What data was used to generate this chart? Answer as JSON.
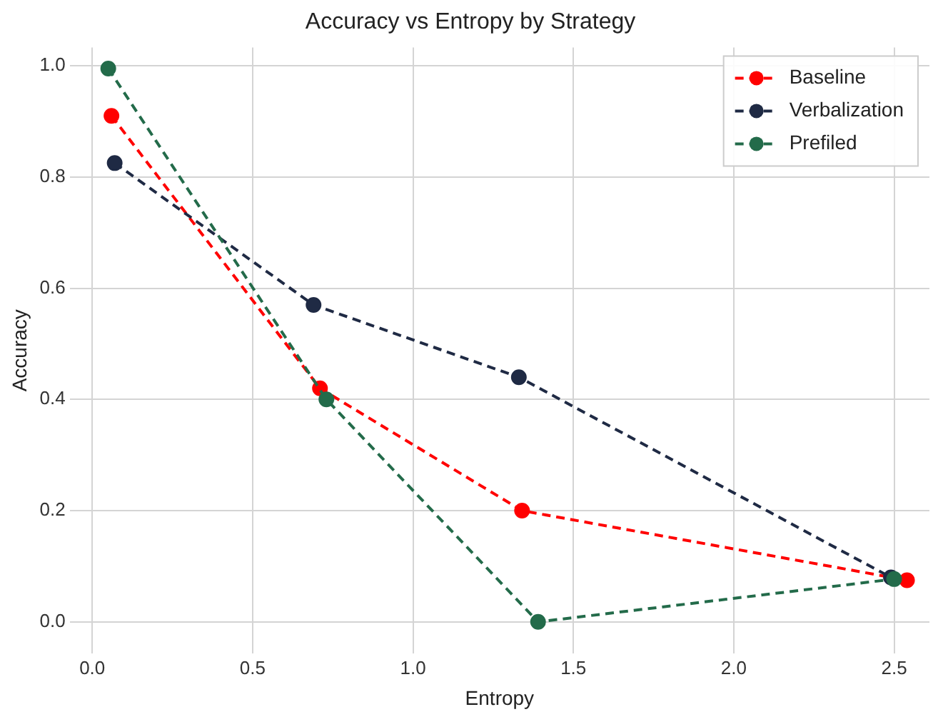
{
  "chart_data": {
    "type": "line",
    "title": "Accuracy vs Entropy by Strategy",
    "xlabel": "Entropy",
    "ylabel": "Accuracy",
    "xlim": [
      -0.07,
      2.61
    ],
    "ylim": [
      -0.057,
      1.033
    ],
    "xticks": [
      {
        "value": 0,
        "label": "0.0"
      },
      0.5,
      {
        "value": 1,
        "label": "1.0"
      },
      1.5,
      {
        "value": 2,
        "label": "2.0"
      },
      2.5
    ],
    "yticks": [
      {
        "value": 0,
        "label": "0.0"
      },
      0.2,
      0.4,
      0.6,
      0.8,
      {
        "value": 1,
        "label": "1.0"
      }
    ],
    "grid": true,
    "legend": "top right",
    "marker": "circle",
    "line_style": "dashed",
    "series": [
      {
        "name": "Baseline",
        "color": "#ff0000",
        "x": [
          0.06,
          0.71,
          1.34,
          2.54
        ],
        "values": [
          0.91,
          0.42,
          0.2,
          0.075
        ]
      },
      {
        "name": "Verbalization",
        "color": "#1f2a44",
        "x": [
          0.07,
          0.69,
          1.33,
          2.49
        ],
        "values": [
          0.825,
          0.57,
          0.44,
          0.08
        ]
      },
      {
        "name": "Prefiled",
        "color": "#236b4a",
        "x": [
          0.05,
          0.73,
          1.39,
          2.5
        ],
        "values": [
          0.995,
          0.4,
          0,
          0.077
        ]
      }
    ]
  }
}
